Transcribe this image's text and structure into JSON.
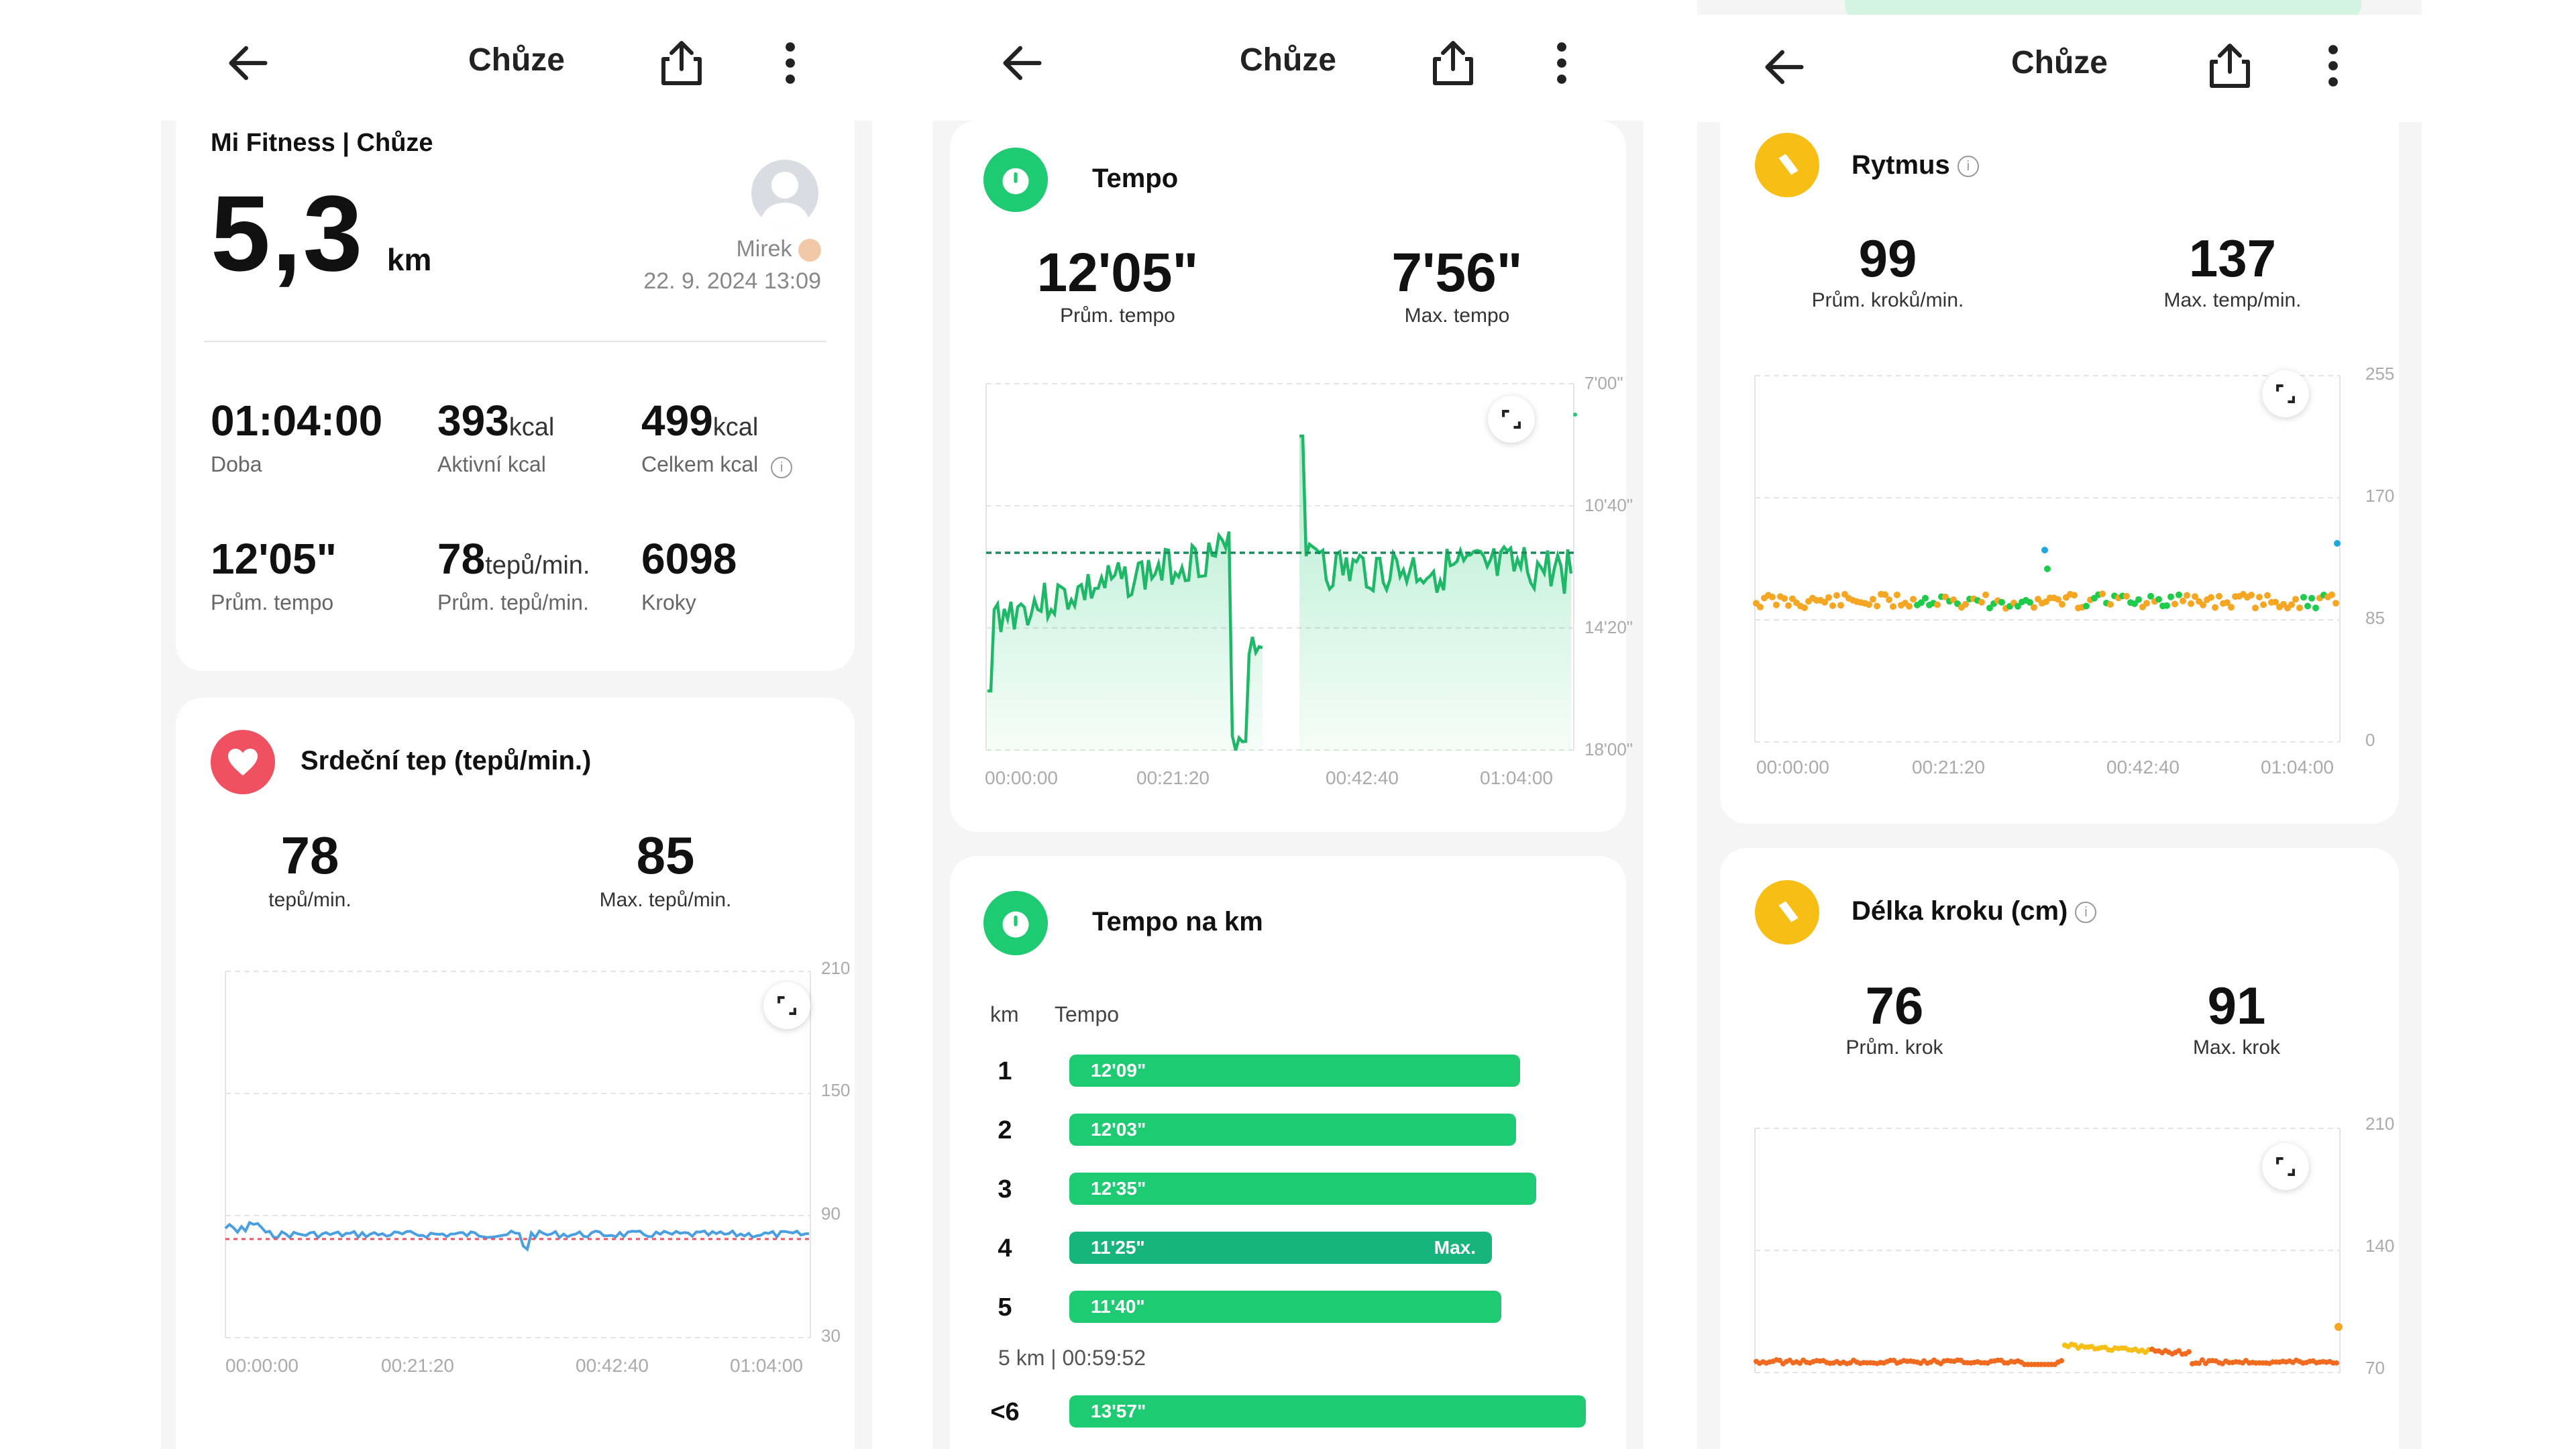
{
  "screen1": {
    "title": "Chůze",
    "source": "Mi Fitness | Chůze",
    "distance": "5,3",
    "distance_unit": "km",
    "user": "Mirek",
    "datetime": "22. 9. 2024 13:09",
    "stats": [
      {
        "value": "01:04:00",
        "unit": "",
        "label": "Doba"
      },
      {
        "value": "393",
        "unit": "kcal",
        "label": "Aktivní kcal"
      },
      {
        "value": "499",
        "unit": "kcal",
        "label": "Celkem kcal"
      },
      {
        "value": "12'05\"",
        "unit": "",
        "label": "Prům. tempo"
      },
      {
        "value": "78",
        "unit": "tepů/min.",
        "label": "Prům. tepů/min."
      },
      {
        "value": "6098",
        "unit": "",
        "label": "Kroky"
      }
    ],
    "hr": {
      "title": "Srdeční tep (tepů/min.)",
      "avg_value": "78",
      "avg_label": "tepů/min.",
      "max_value": "85",
      "max_label": "Max. tepů/min.",
      "y_ticks": [
        "210",
        "150",
        "90",
        "30"
      ],
      "x_ticks": [
        "00:00:00",
        "00:21:20",
        "00:42:40",
        "01:04:00"
      ],
      "color": "#4a9fe0"
    }
  },
  "screen2": {
    "title": "Chůze",
    "tempo": {
      "title": "Tempo",
      "avg_value": "12'05\"",
      "avg_label": "Prům. tempo",
      "max_value": "7'56\"",
      "max_label": "Max. tempo",
      "y_ticks": [
        "7'00\"",
        "10'40\"",
        "14'20\"",
        "18'00\""
      ],
      "x_ticks": [
        "00:00:00",
        "00:21:20",
        "00:42:40",
        "01:04:00"
      ],
      "color": "#1fb868"
    },
    "per_km": {
      "title": "Tempo na km",
      "col_km": "km",
      "col_tempo": "Tempo",
      "rows": [
        {
          "km": "1",
          "tempo": "12'09\"",
          "max": ""
        },
        {
          "km": "2",
          "tempo": "12'03\"",
          "max": ""
        },
        {
          "km": "3",
          "tempo": "12'35\"",
          "max": ""
        },
        {
          "km": "4",
          "tempo": "11'25\"",
          "max": "Max."
        },
        {
          "km": "5",
          "tempo": "11'40\"",
          "max": ""
        }
      ],
      "summary": "5 km | 00:59:52",
      "last_km": "<6",
      "last_tempo": "13'57\""
    }
  },
  "screen3": {
    "title": "Chůze",
    "cadence": {
      "title": "Rytmus",
      "avg_value": "99",
      "avg_label": "Prům. kroků/min.",
      "max_value": "137",
      "max_label": "Max. temp/min.",
      "y_ticks": [
        "255",
        "170",
        "85",
        "0"
      ],
      "x_ticks": [
        "00:00:00",
        "00:21:20",
        "00:42:40",
        "01:04:00"
      ]
    },
    "stride": {
      "title": "Délka kroku (cm)",
      "avg_value": "76",
      "avg_label": "Prům. krok",
      "max_value": "91",
      "max_label": "Max. krok",
      "y_ticks": [
        "210",
        "140",
        "70"
      ]
    },
    "colors": {
      "green": "#1fcb4a",
      "orange": "#f5a623",
      "red_orange": "#f06a1f",
      "blue": "#1fa8e0",
      "yellow": "#f7be16"
    }
  }
}
